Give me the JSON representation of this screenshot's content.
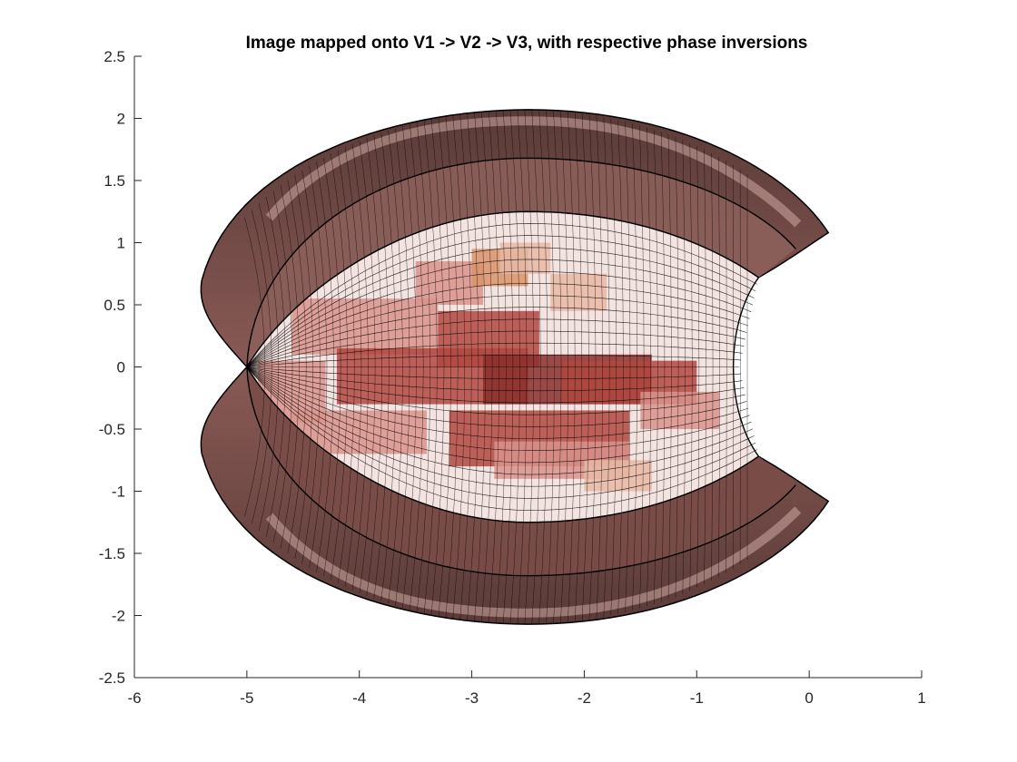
{
  "chart_data": {
    "type": "other",
    "plot_kind": "mapped image surface (textured mesh)",
    "title": "Image mapped onto V1 -> V2 -> V3, with respective phase inversions",
    "xlabel": "",
    "ylabel": "",
    "xlim": [
      -6,
      1
    ],
    "ylim": [
      -2.5,
      2.5
    ],
    "xticks": [
      -6,
      -5,
      -4,
      -3,
      -2,
      -1,
      0,
      1
    ],
    "yticks": [
      -2.5,
      -2,
      -1.5,
      -1,
      -0.5,
      0,
      0.5,
      1,
      1.5,
      2,
      2.5
    ],
    "xtick_labels": [
      "-6",
      "-5",
      "-4",
      "-3",
      "-2",
      "-1",
      "0",
      "1"
    ],
    "ytick_labels": [
      "-2.5",
      "-2",
      "-1.5",
      "-1",
      "-0.5",
      "0",
      "0.5",
      "1",
      "1.5",
      "2",
      "2.5"
    ],
    "grid": false,
    "shape": {
      "apex": [
        -5.0,
        0.0
      ],
      "outer_left_x": -5.4,
      "outer_top_y": 2.07,
      "outer_bottom_y": -2.07,
      "tip_upper": [
        0.17,
        1.08
      ],
      "tip_lower": [
        0.17,
        -1.08
      ],
      "inner_right_x": -0.6,
      "band_separations_y": [
        1.25,
        1.68,
        -1.25,
        -1.68
      ]
    },
    "colors": {
      "mesh_line": "#000000",
      "band_dark": "#6b4440",
      "band_mid": "#8f5a55",
      "band_light": "#cfa9a4",
      "face_light": "#f3e4e1",
      "face_red": "#b0483f",
      "face_dark_red": "#8a2f2a",
      "face_pink": "#d9938b",
      "face_orange": "#d9936a",
      "face_peach": "#e8b9a4"
    }
  }
}
